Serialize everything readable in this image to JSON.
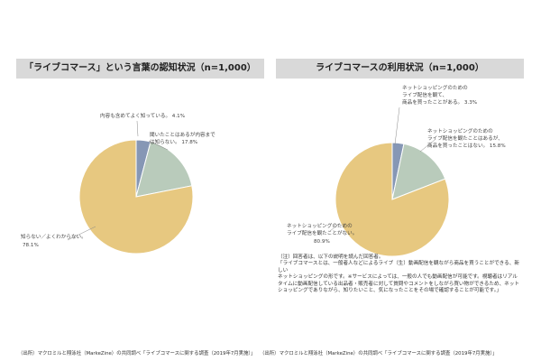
{
  "chart_data": [
    {
      "type": "pie",
      "title": "「ライブコマース」という言葉の認知状況（n=1,000）",
      "slices": [
        {
          "label_lines": [
            "内容も含めてよく知っている。"
          ],
          "value_label": "4.1%",
          "value": 4.1,
          "color": "#8697b5"
        },
        {
          "label_lines": [
            "聞いたことはあるが内容まで",
            "は知らない。"
          ],
          "value_label": "17.8%",
          "value": 17.8,
          "color": "#b9cbbb"
        },
        {
          "label_lines": [
            "知らない／よくわからない。"
          ],
          "value_label": "78.1%",
          "value": 78.1,
          "color": "#e7c880"
        }
      ],
      "source": "（出所）マクロミルと翔泳社（MarkeZine）の共同調べ「ライブコマースに関する調査（2019年7月実施）」"
    },
    {
      "type": "pie",
      "title": "ライブコマースの利用状況（n=1,000）",
      "slices": [
        {
          "label_lines": [
            "ネットショッピングのための",
            "ライブ配信を観て、",
            "商品を買ったことがある。"
          ],
          "value_label": "3.3%",
          "value": 3.3,
          "color": "#8697b5"
        },
        {
          "label_lines": [
            "ネットショッピングのための",
            "ライブ配信を観たことはあるが、",
            "商品を買ったことはない。"
          ],
          "value_label": "15.8%",
          "value": 15.8,
          "color": "#b9cbbb"
        },
        {
          "label_lines": [
            "ネットショッピングのための",
            "ライブ配信を観たことがない。"
          ],
          "value_label": "80.9%",
          "value": 80.9,
          "color": "#e7c880"
        }
      ],
      "note": "（注）回答者は、以下の説明を読んだ回答者。\n「ライブコマースとは、一般者人などによるライブ（生）動画配信を観ながら商品を買うことができる、新しい\nネットショッピングの形です。※サービスによっては、一般の人でも動画配信が可能です。視聴者はリアル\nタイムに動画配信している出品者・販売者に対して質問やコメントをしながら買い物ができるため、ネット\nショッピングでありながら、知りたいこと、気になったことをその場で確認することが可能です。」",
      "source": "（出所）マクロミルと翔泳社（MarkeZine）の共同調べ「ライブコマースに関する調査（2019年7月実施）」"
    }
  ]
}
